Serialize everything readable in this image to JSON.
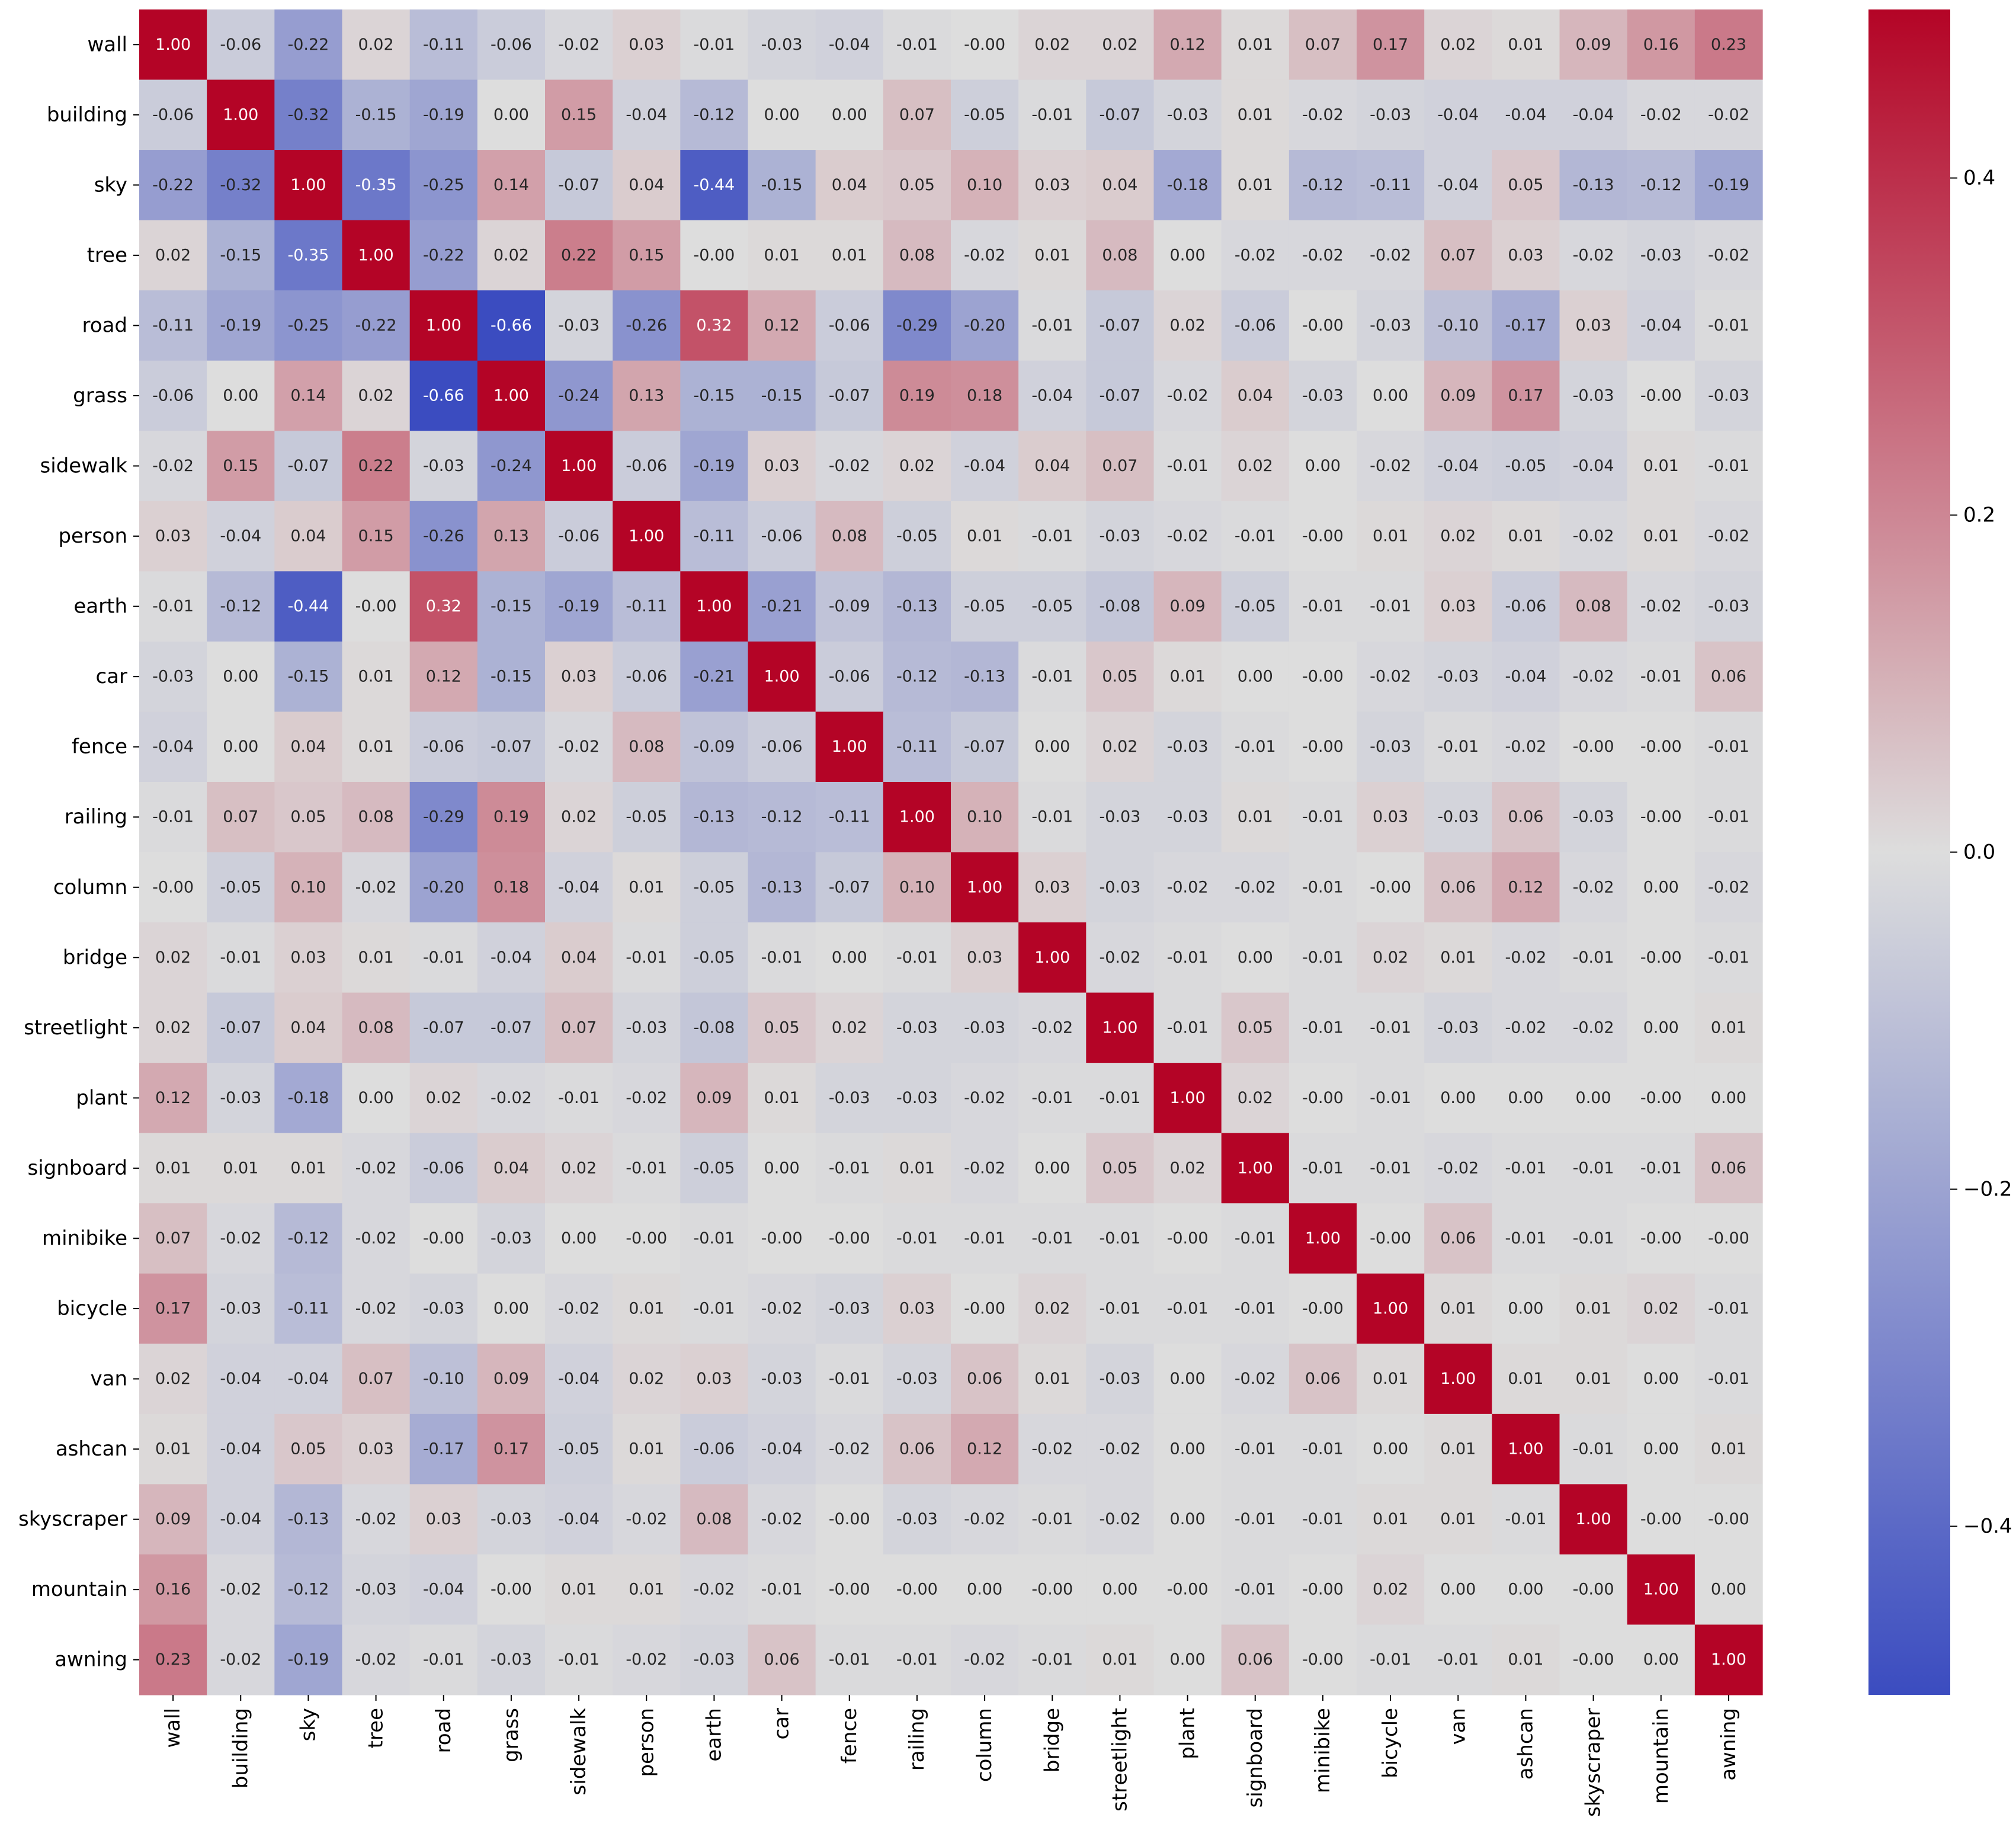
{
  "chart_data": {
    "type": "heatmap",
    "title": "",
    "xlabel": "",
    "ylabel": "",
    "categories": [
      "wall",
      "building",
      "sky",
      "tree",
      "road",
      "grass",
      "sidewalk",
      "person",
      "earth",
      "car",
      "fence",
      "railing",
      "column",
      "bridge",
      "streetlight",
      "plant",
      "signboard",
      "minibike",
      "bicycle",
      "van",
      "ashcan",
      "skyscraper",
      "mountain",
      "awning"
    ],
    "values": [
      [
        "1.00",
        "-0.06",
        "-0.22",
        "0.02",
        "-0.11",
        "-0.06",
        "-0.02",
        "0.03",
        "-0.01",
        "-0.03",
        "-0.04",
        "-0.01",
        "-0.00",
        "0.02",
        "0.02",
        "0.12",
        "0.01",
        "0.07",
        "0.17",
        "0.02",
        "0.01",
        "0.09",
        "0.16",
        "0.23"
      ],
      [
        "-0.06",
        "1.00",
        "-0.32",
        "-0.15",
        "-0.19",
        "0.00",
        "0.15",
        "-0.04",
        "-0.12",
        "0.00",
        "0.00",
        "0.07",
        "-0.05",
        "-0.01",
        "-0.07",
        "-0.03",
        "0.01",
        "-0.02",
        "-0.03",
        "-0.04",
        "-0.04",
        "-0.04",
        "-0.02",
        "-0.02"
      ],
      [
        "-0.22",
        "-0.32",
        "1.00",
        "-0.35",
        "-0.25",
        "0.14",
        "-0.07",
        "0.04",
        "-0.44",
        "-0.15",
        "0.04",
        "0.05",
        "0.10",
        "0.03",
        "0.04",
        "-0.18",
        "0.01",
        "-0.12",
        "-0.11",
        "-0.04",
        "0.05",
        "-0.13",
        "-0.12",
        "-0.19"
      ],
      [
        "0.02",
        "-0.15",
        "-0.35",
        "1.00",
        "-0.22",
        "0.02",
        "0.22",
        "0.15",
        "-0.00",
        "0.01",
        "0.01",
        "0.08",
        "-0.02",
        "0.01",
        "0.08",
        "0.00",
        "-0.02",
        "-0.02",
        "-0.02",
        "0.07",
        "0.03",
        "-0.02",
        "-0.03",
        "-0.02"
      ],
      [
        "-0.11",
        "-0.19",
        "-0.25",
        "-0.22",
        "1.00",
        "-0.66",
        "-0.03",
        "-0.26",
        "0.32",
        "0.12",
        "-0.06",
        "-0.29",
        "-0.20",
        "-0.01",
        "-0.07",
        "0.02",
        "-0.06",
        "-0.00",
        "-0.03",
        "-0.10",
        "-0.17",
        "0.03",
        "-0.04",
        "-0.01"
      ],
      [
        "-0.06",
        "0.00",
        "0.14",
        "0.02",
        "-0.66",
        "1.00",
        "-0.24",
        "0.13",
        "-0.15",
        "-0.15",
        "-0.07",
        "0.19",
        "0.18",
        "-0.04",
        "-0.07",
        "-0.02",
        "0.04",
        "-0.03",
        "0.00",
        "0.09",
        "0.17",
        "-0.03",
        "-0.00",
        "-0.03"
      ],
      [
        "-0.02",
        "0.15",
        "-0.07",
        "0.22",
        "-0.03",
        "-0.24",
        "1.00",
        "-0.06",
        "-0.19",
        "0.03",
        "-0.02",
        "0.02",
        "-0.04",
        "0.04",
        "0.07",
        "-0.01",
        "0.02",
        "0.00",
        "-0.02",
        "-0.04",
        "-0.05",
        "-0.04",
        "0.01",
        "-0.01"
      ],
      [
        "0.03",
        "-0.04",
        "0.04",
        "0.15",
        "-0.26",
        "0.13",
        "-0.06",
        "1.00",
        "-0.11",
        "-0.06",
        "0.08",
        "-0.05",
        "0.01",
        "-0.01",
        "-0.03",
        "-0.02",
        "-0.01",
        "-0.00",
        "0.01",
        "0.02",
        "0.01",
        "-0.02",
        "0.01",
        "-0.02"
      ],
      [
        "-0.01",
        "-0.12",
        "-0.44",
        "-0.00",
        "0.32",
        "-0.15",
        "-0.19",
        "-0.11",
        "1.00",
        "-0.21",
        "-0.09",
        "-0.13",
        "-0.05",
        "-0.05",
        "-0.08",
        "0.09",
        "-0.05",
        "-0.01",
        "-0.01",
        "0.03",
        "-0.06",
        "0.08",
        "-0.02",
        "-0.03"
      ],
      [
        "-0.03",
        "0.00",
        "-0.15",
        "0.01",
        "0.12",
        "-0.15",
        "0.03",
        "-0.06",
        "-0.21",
        "1.00",
        "-0.06",
        "-0.12",
        "-0.13",
        "-0.01",
        "0.05",
        "0.01",
        "0.00",
        "-0.00",
        "-0.02",
        "-0.03",
        "-0.04",
        "-0.02",
        "-0.01",
        "0.06"
      ],
      [
        "-0.04",
        "0.00",
        "0.04",
        "0.01",
        "-0.06",
        "-0.07",
        "-0.02",
        "0.08",
        "-0.09",
        "-0.06",
        "1.00",
        "-0.11",
        "-0.07",
        "0.00",
        "0.02",
        "-0.03",
        "-0.01",
        "-0.00",
        "-0.03",
        "-0.01",
        "-0.02",
        "-0.00",
        "-0.00",
        "-0.01"
      ],
      [
        "-0.01",
        "0.07",
        "0.05",
        "0.08",
        "-0.29",
        "0.19",
        "0.02",
        "-0.05",
        "-0.13",
        "-0.12",
        "-0.11",
        "1.00",
        "0.10",
        "-0.01",
        "-0.03",
        "-0.03",
        "0.01",
        "-0.01",
        "0.03",
        "-0.03",
        "0.06",
        "-0.03",
        "-0.00",
        "-0.01"
      ],
      [
        "-0.00",
        "-0.05",
        "0.10",
        "-0.02",
        "-0.20",
        "0.18",
        "-0.04",
        "0.01",
        "-0.05",
        "-0.13",
        "-0.07",
        "0.10",
        "1.00",
        "0.03",
        "-0.03",
        "-0.02",
        "-0.02",
        "-0.01",
        "-0.00",
        "0.06",
        "0.12",
        "-0.02",
        "0.00",
        "-0.02"
      ],
      [
        "0.02",
        "-0.01",
        "0.03",
        "0.01",
        "-0.01",
        "-0.04",
        "0.04",
        "-0.01",
        "-0.05",
        "-0.01",
        "0.00",
        "-0.01",
        "0.03",
        "1.00",
        "-0.02",
        "-0.01",
        "0.00",
        "-0.01",
        "0.02",
        "0.01",
        "-0.02",
        "-0.01",
        "-0.00",
        "-0.01"
      ],
      [
        "0.02",
        "-0.07",
        "0.04",
        "0.08",
        "-0.07",
        "-0.07",
        "0.07",
        "-0.03",
        "-0.08",
        "0.05",
        "0.02",
        "-0.03",
        "-0.03",
        "-0.02",
        "1.00",
        "-0.01",
        "0.05",
        "-0.01",
        "-0.01",
        "-0.03",
        "-0.02",
        "-0.02",
        "0.00",
        "0.01"
      ],
      [
        "0.12",
        "-0.03",
        "-0.18",
        "0.00",
        "0.02",
        "-0.02",
        "-0.01",
        "-0.02",
        "0.09",
        "0.01",
        "-0.03",
        "-0.03",
        "-0.02",
        "-0.01",
        "-0.01",
        "1.00",
        "0.02",
        "-0.00",
        "-0.01",
        "0.00",
        "0.00",
        "0.00",
        "-0.00",
        "0.00"
      ],
      [
        "0.01",
        "0.01",
        "0.01",
        "-0.02",
        "-0.06",
        "0.04",
        "0.02",
        "-0.01",
        "-0.05",
        "0.00",
        "-0.01",
        "0.01",
        "-0.02",
        "0.00",
        "0.05",
        "0.02",
        "1.00",
        "-0.01",
        "-0.01",
        "-0.02",
        "-0.01",
        "-0.01",
        "-0.01",
        "0.06"
      ],
      [
        "0.07",
        "-0.02",
        "-0.12",
        "-0.02",
        "-0.00",
        "-0.03",
        "0.00",
        "-0.00",
        "-0.01",
        "-0.00",
        "-0.00",
        "-0.01",
        "-0.01",
        "-0.01",
        "-0.01",
        "-0.00",
        "-0.01",
        "1.00",
        "-0.00",
        "0.06",
        "-0.01",
        "-0.01",
        "-0.00",
        "-0.00"
      ],
      [
        "0.17",
        "-0.03",
        "-0.11",
        "-0.02",
        "-0.03",
        "0.00",
        "-0.02",
        "0.01",
        "-0.01",
        "-0.02",
        "-0.03",
        "0.03",
        "-0.00",
        "0.02",
        "-0.01",
        "-0.01",
        "-0.01",
        "-0.00",
        "1.00",
        "0.01",
        "0.00",
        "0.01",
        "0.02",
        "-0.01"
      ],
      [
        "0.02",
        "-0.04",
        "-0.04",
        "0.07",
        "-0.10",
        "0.09",
        "-0.04",
        "0.02",
        "0.03",
        "-0.03",
        "-0.01",
        "-0.03",
        "0.06",
        "0.01",
        "-0.03",
        "0.00",
        "-0.02",
        "0.06",
        "0.01",
        "1.00",
        "0.01",
        "0.01",
        "0.00",
        "-0.01"
      ],
      [
        "0.01",
        "-0.04",
        "0.05",
        "0.03",
        "-0.17",
        "0.17",
        "-0.05",
        "0.01",
        "-0.06",
        "-0.04",
        "-0.02",
        "0.06",
        "0.12",
        "-0.02",
        "-0.02",
        "0.00",
        "-0.01",
        "-0.01",
        "0.00",
        "0.01",
        "1.00",
        "-0.01",
        "0.00",
        "0.01"
      ],
      [
        "0.09",
        "-0.04",
        "-0.13",
        "-0.02",
        "0.03",
        "-0.03",
        "-0.04",
        "-0.02",
        "0.08",
        "-0.02",
        "-0.00",
        "-0.03",
        "-0.02",
        "-0.01",
        "-0.02",
        "0.00",
        "-0.01",
        "-0.01",
        "0.01",
        "0.01",
        "-0.01",
        "1.00",
        "-0.00",
        "-0.00"
      ],
      [
        "0.16",
        "-0.02",
        "-0.12",
        "-0.03",
        "-0.04",
        "-0.00",
        "0.01",
        "0.01",
        "-0.02",
        "-0.01",
        "-0.00",
        "-0.00",
        "0.00",
        "-0.00",
        "0.00",
        "-0.00",
        "-0.01",
        "-0.00",
        "0.02",
        "0.00",
        "0.00",
        "-0.00",
        "1.00",
        "0.00"
      ],
      [
        "0.23",
        "-0.02",
        "-0.19",
        "-0.02",
        "-0.01",
        "-0.03",
        "-0.01",
        "-0.02",
        "-0.03",
        "0.06",
        "-0.01",
        "-0.01",
        "-0.02",
        "-0.01",
        "0.01",
        "0.00",
        "0.06",
        "-0.00",
        "-0.01",
        "-0.01",
        "0.01",
        "-0.00",
        "0.00",
        "1.00"
      ]
    ],
    "color_range": [
      -0.5,
      0.5
    ],
    "colorbar_ticks": [
      {
        "value": 0.4,
        "label": "0.4"
      },
      {
        "value": 0.2,
        "label": "0.2"
      },
      {
        "value": 0.0,
        "label": "0.0"
      },
      {
        "value": -0.2,
        "label": "−0.2"
      },
      {
        "value": -0.4,
        "label": "−0.4"
      }
    ],
    "colormap": "coolwarm",
    "colormap_stops": [
      "#3b4cc0",
      "#dddddd",
      "#b40426"
    ]
  }
}
